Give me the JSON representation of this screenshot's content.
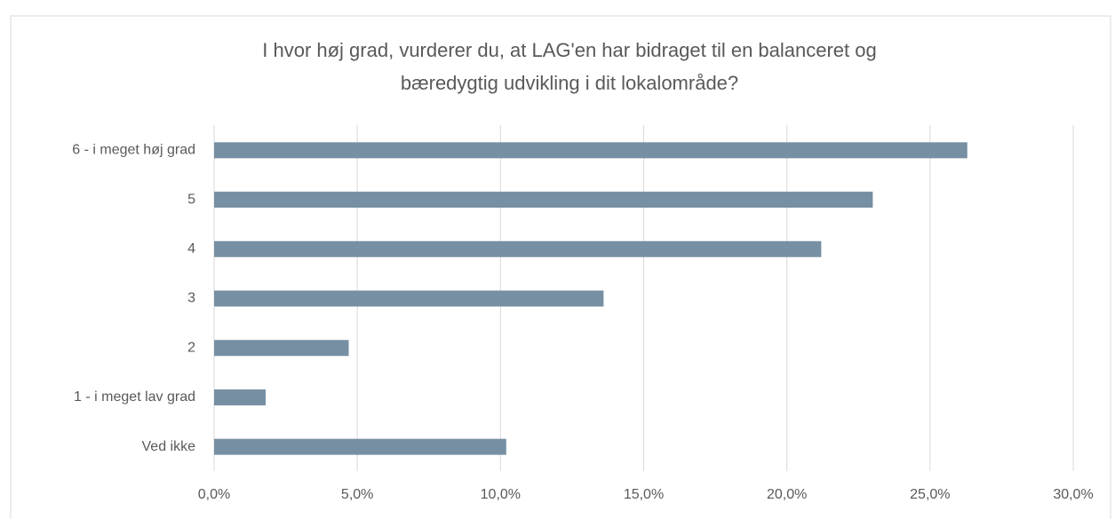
{
  "chart_data": {
    "type": "barh",
    "title": [
      "I hvor høj grad, vurderer du, at LAG'en har bidraget til en balanceret og",
      "bæredygtig udvikling i dit lokalområde?"
    ],
    "categories": [
      "6 - i meget høj grad",
      "5",
      "4",
      "3",
      "2",
      "1 - i meget lav grad",
      "Ved ikke"
    ],
    "values": [
      26.3,
      23.0,
      21.2,
      13.6,
      4.7,
      1.8,
      10.2
    ],
    "color": "#768fa3",
    "xlim": [
      0,
      30
    ],
    "xticks": [
      {
        "value": 0,
        "label": "0,0%"
      },
      {
        "value": 5,
        "label": "5,0%"
      },
      {
        "value": 10,
        "label": "10,0%"
      },
      {
        "value": 15,
        "label": "15,0%"
      },
      {
        "value": 20,
        "label": "20,0%"
      },
      {
        "value": 25,
        "label": "25,0%"
      },
      {
        "value": 30,
        "label": "30,0%"
      }
    ],
    "grid": true
  }
}
